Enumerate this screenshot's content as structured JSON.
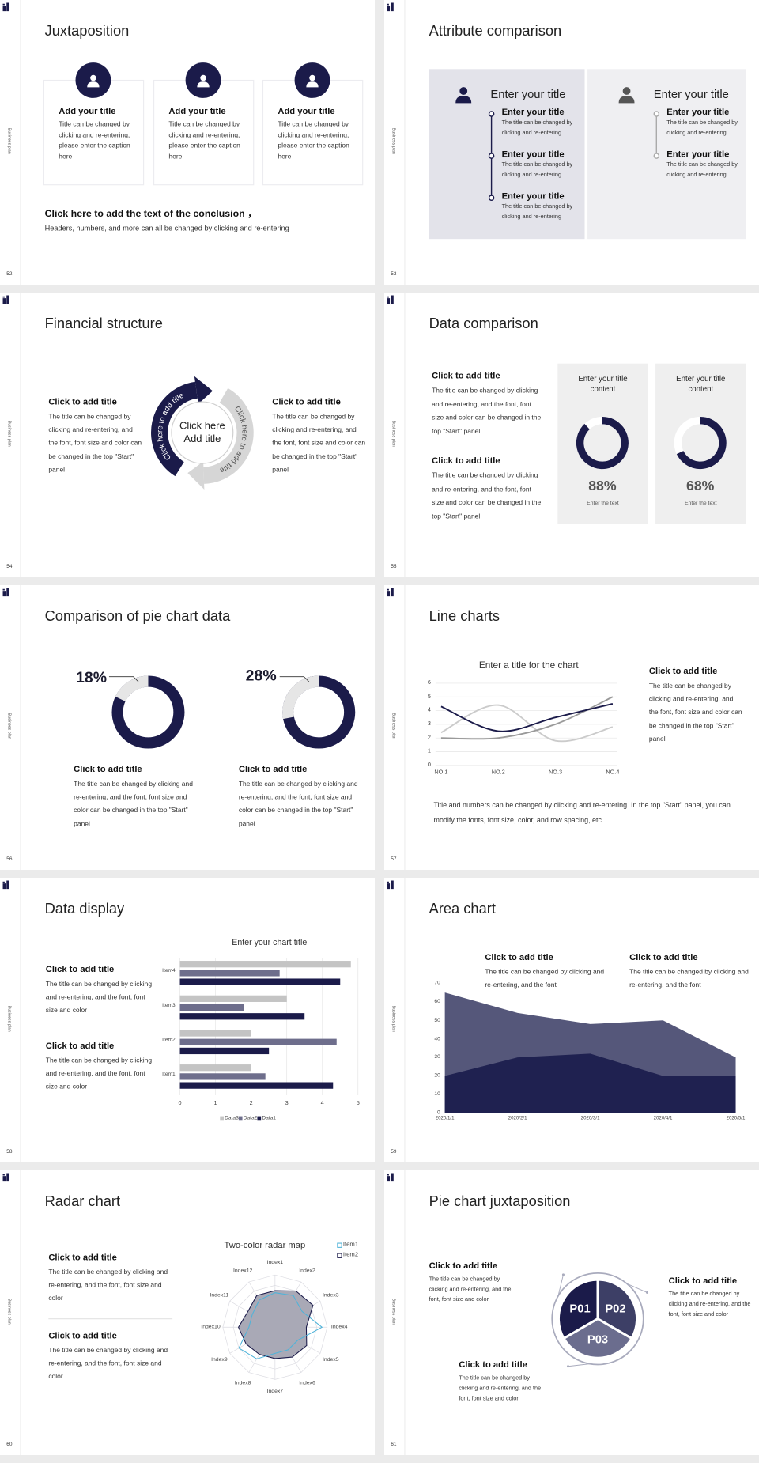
{
  "side_label": "Business plan",
  "slides": [
    {
      "number": 52,
      "title": "Juxtaposition",
      "cards": [
        {
          "title": "Add your title",
          "text": "Title can be changed by clicking and re-entering, please enter the caption here"
        },
        {
          "title": "Add your title",
          "text": "Title can be changed by clicking and re-entering, please enter the caption here"
        },
        {
          "title": "Add your title",
          "text": "Title can be changed by clicking and re-entering, please enter the caption here"
        }
      ],
      "conclusion": {
        "title": "Click here to add the text of the conclusion ，",
        "text": "Headers, numbers, and more can all be changed by clicking and re-entering"
      }
    },
    {
      "number": 53,
      "title": "Attribute comparison",
      "panels": [
        {
          "title": "Enter your title",
          "items": [
            {
              "title": "Enter your title",
              "text": "The title can be changed by clicking and re-entering"
            },
            {
              "title": "Enter your title",
              "text": "The title can be changed by clicking and re-entering"
            },
            {
              "title": "Enter your title",
              "text": "The title can be changed by clicking and re-entering"
            }
          ]
        },
        {
          "title": "Enter your title",
          "items": [
            {
              "title": "Enter your title",
              "text": "The title can be changed by clicking and re-entering"
            },
            {
              "title": "Enter your title",
              "text": "The title can be changed by clicking and re-entering"
            }
          ]
        }
      ]
    },
    {
      "number": 54,
      "title": "Financial structure",
      "blocks": [
        {
          "title": "Click to add title",
          "text": "The title can be changed by clicking and re-entering, and the font, font size and color can be changed in the top \"Start\" panel"
        },
        {
          "title": "Click to add title",
          "text": "The title can be changed by clicking and re-entering, and the font, font size and color can be changed in the top \"Start\" panel"
        }
      ],
      "center": "Click here Add title",
      "arrows": [
        "Click here to add title",
        "Click here to add title"
      ]
    },
    {
      "number": 55,
      "title": "Data comparison",
      "blocks": [
        {
          "title": "Click to add title",
          "text": "The title can be changed by clicking and re-entering, and the font, font size and color can be changed in the top \"Start\" panel"
        },
        {
          "title": "Click to add title",
          "text": "The title can be changed by clicking and re-entering, and the font, font size and color can be changed in the top \"Start\" panel"
        }
      ],
      "cards": [
        {
          "title": "Enter your title content",
          "caption": "Enter the text"
        },
        {
          "title": "Enter your title content",
          "caption": "Enter the text"
        }
      ],
      "chart_data": {
        "type": "donut",
        "values": [
          88,
          68
        ],
        "value_labels": [
          "88%",
          "68%"
        ],
        "color": "#1b1b4a",
        "track_color": "#ffffff"
      }
    },
    {
      "number": 56,
      "title": "Comparison of pie chart data",
      "blocks": [
        {
          "title": "Click to add title",
          "text": "The title can be changed by clicking and re-entering, and the font, font size and color can be changed in the top \"Start\" panel"
        },
        {
          "title": "Click to add title",
          "text": "The title can be changed by clicking and re-entering, and the font, font size and color can be changed in the top \"Start\" panel"
        }
      ],
      "chart_data": {
        "type": "donut",
        "values": [
          18,
          28
        ],
        "value_labels": [
          "18%",
          "28%"
        ],
        "color": "#e6e6e6",
        "track_color": "#1b1b4a"
      }
    },
    {
      "number": 57,
      "title": "Line charts",
      "block": {
        "title": "Click to add title",
        "text": "The title can be changed by clicking and re-entering, and the font, font size and color can be changed in the top \"Start\" panel"
      },
      "note": "Title and numbers can be changed by clicking and re-entering. In the top \"Start\" panel, you can modify the fonts, font size, color, and row spacing, etc",
      "chart_data": {
        "type": "line",
        "title": "Enter a title for the chart",
        "categories": [
          "NO.1",
          "NO.2",
          "NO.3",
          "NO.4"
        ],
        "series": [
          {
            "color": "#cbcbcb",
            "values": [
              2.4,
              4.4,
              1.8,
              2.8
            ]
          },
          {
            "color": "#9a9a9a",
            "values": [
              2,
              2,
              3,
              5
            ]
          },
          {
            "color": "#1b1b4a",
            "values": [
              4.3,
              2.5,
              3.5,
              4.5
            ]
          }
        ],
        "ylim": [
          0,
          6
        ],
        "yticks": [
          0,
          1,
          2,
          3,
          4,
          5,
          6
        ],
        "grid": true,
        "smooth": true
      }
    },
    {
      "number": 58,
      "title": "Data display",
      "blocks": [
        {
          "title": "Click to add title",
          "text": "The title can be changed by clicking and re-entering, and the font, font size and color"
        },
        {
          "title": "Click to add title",
          "text": "The title can be changed by clicking and re-entering, and the font, font size and color"
        }
      ],
      "chart_data": {
        "type": "bar",
        "orientation": "horizontal",
        "title": "Enter your chart title",
        "categories": [
          "Item1",
          "Item2",
          "Item3",
          "Item4"
        ],
        "series": [
          {
            "name": "Data1",
            "color": "#1b1b4a",
            "values": [
              4.3,
              2.5,
              3.5,
              4.5
            ]
          },
          {
            "name": "Data2",
            "color": "#6e6e8c",
            "values": [
              2.4,
              4.4,
              1.8,
              2.8
            ]
          },
          {
            "name": "Data3",
            "color": "#c4c4c4",
            "values": [
              2,
              2,
              3,
              4.8
            ]
          }
        ],
        "xlim": [
          0,
          5
        ],
        "xticks": [
          0,
          1,
          2,
          3,
          4,
          5
        ],
        "grid": true,
        "legend": "bottom"
      }
    },
    {
      "number": 59,
      "title": "Area chart",
      "blocks": [
        {
          "title": "Click to add title",
          "text": "The title can be changed by clicking and re-entering, and the font"
        },
        {
          "title": "Click to add title",
          "text": "The title can be changed by clicking and re-entering, and the font"
        }
      ],
      "chart_data": {
        "type": "area",
        "categories": [
          "2020/1/1",
          "2020/2/1",
          "2020/3/1",
          "2020/4/1",
          "2020/5/1"
        ],
        "series": [
          {
            "color": "#55577a",
            "values": [
              65,
              54,
              48,
              50,
              30
            ]
          },
          {
            "color": "#1f2150",
            "values": [
              20,
              30,
              32,
              20,
              20
            ]
          }
        ],
        "ylim": [
          0,
          70
        ],
        "yticks": [
          0,
          10,
          20,
          30,
          40,
          50,
          60,
          70
        ],
        "grid": false
      }
    },
    {
      "number": 60,
      "title": "Radar chart",
      "blocks": [
        {
          "title": "Click to add title",
          "text": "The title can be changed by clicking and re-entering, and the font, font size and color"
        },
        {
          "title": "Click to add title",
          "text": "The title can be changed by clicking and re-entering, and the font, font size and color"
        }
      ],
      "chart_data": {
        "type": "radar",
        "title": "Two-color radar map",
        "categories": [
          "Index1",
          "Index2",
          "Index3",
          "Index4",
          "Index5",
          "Index6",
          "Index7",
          "Index8",
          "Index9",
          "Index10",
          "Index11",
          "Index12"
        ],
        "series": [
          {
            "name": "Item1",
            "color": "#4fb3d9",
            "fill": "none",
            "values": [
              3.3,
              3.5,
              3,
              4.5,
              2.5,
              2.5,
              2.5,
              3.5,
              4,
              2.5,
              2.5,
              3
            ]
          },
          {
            "name": "Item2",
            "color": "#1b1b4a",
            "fill": "#a9a9b6",
            "values": [
              3.5,
              4,
              4.2,
              3,
              3.5,
              3.3,
              3,
              3,
              3.2,
              3.5,
              3,
              3.5
            ]
          }
        ],
        "rlim": [
          0,
          5
        ],
        "rticks": [
          1,
          2,
          3,
          4,
          5
        ],
        "grid": true,
        "legend": "top-right"
      }
    },
    {
      "number": 61,
      "title": "Pie chart juxtaposition",
      "segments": [
        "P01",
        "P02",
        "P03"
      ],
      "blocks": [
        {
          "title": "Click to add title",
          "text": "The title can be changed by clicking and re-entering, and the font, font size and color"
        },
        {
          "title": "Click to add title",
          "text": "The title can be changed by clicking and re-entering, and the font, font size and color"
        },
        {
          "title": "Click to add title",
          "text": "The title can be changed by clicking and re-entering, and the font, font size and color"
        }
      ]
    }
  ]
}
